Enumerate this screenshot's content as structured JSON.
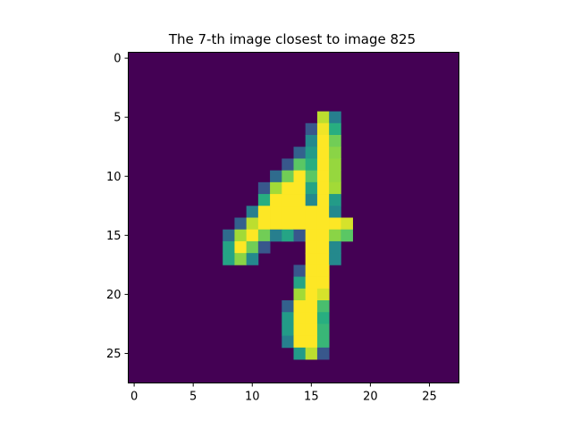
{
  "chart_data": {
    "type": "heatmap",
    "title": "The 7-th image closest to image 825",
    "xlabel": "",
    "ylabel": "",
    "rows": 28,
    "cols": 28,
    "xlim": [
      -0.5,
      27.5
    ],
    "ylim": [
      27.5,
      -0.5
    ],
    "x_ticks": [
      0,
      5,
      10,
      15,
      20,
      25
    ],
    "y_ticks": [
      0,
      5,
      10,
      15,
      20,
      25
    ],
    "colormap": "viridis",
    "value_range": [
      0,
      255
    ],
    "nonzero_pixels": [
      [
        5,
        16,
        230
      ],
      [
        5,
        17,
        110
      ],
      [
        6,
        15,
        70
      ],
      [
        6,
        16,
        250
      ],
      [
        6,
        17,
        160
      ],
      [
        7,
        15,
        120
      ],
      [
        7,
        16,
        255
      ],
      [
        7,
        17,
        200
      ],
      [
        8,
        14,
        80
      ],
      [
        8,
        15,
        140
      ],
      [
        8,
        16,
        255
      ],
      [
        8,
        17,
        210
      ],
      [
        9,
        13,
        70
      ],
      [
        9,
        14,
        190
      ],
      [
        9,
        15,
        160
      ],
      [
        9,
        16,
        255
      ],
      [
        9,
        17,
        215
      ],
      [
        10,
        12,
        90
      ],
      [
        10,
        13,
        200
      ],
      [
        10,
        14,
        255
      ],
      [
        10,
        15,
        190
      ],
      [
        10,
        16,
        255
      ],
      [
        10,
        17,
        215
      ],
      [
        11,
        11,
        70
      ],
      [
        11,
        12,
        220
      ],
      [
        11,
        13,
        255
      ],
      [
        11,
        14,
        255
      ],
      [
        11,
        15,
        150
      ],
      [
        11,
        16,
        255
      ],
      [
        11,
        17,
        220
      ],
      [
        12,
        11,
        160
      ],
      [
        12,
        12,
        255
      ],
      [
        12,
        13,
        255
      ],
      [
        12,
        14,
        255
      ],
      [
        12,
        15,
        120
      ],
      [
        12,
        16,
        255
      ],
      [
        12,
        17,
        140
      ],
      [
        13,
        10,
        110
      ],
      [
        13,
        11,
        255
      ],
      [
        13,
        12,
        255
      ],
      [
        13,
        13,
        255
      ],
      [
        13,
        14,
        255
      ],
      [
        13,
        15,
        255
      ],
      [
        13,
        16,
        255
      ],
      [
        13,
        17,
        120
      ],
      [
        14,
        9,
        80
      ],
      [
        14,
        10,
        230
      ],
      [
        14,
        11,
        255
      ],
      [
        14,
        12,
        255
      ],
      [
        14,
        13,
        255
      ],
      [
        14,
        14,
        255
      ],
      [
        14,
        15,
        255
      ],
      [
        14,
        16,
        255
      ],
      [
        14,
        17,
        255
      ],
      [
        14,
        18,
        240
      ],
      [
        15,
        8,
        90
      ],
      [
        15,
        9,
        220
      ],
      [
        15,
        10,
        255
      ],
      [
        15,
        11,
        200
      ],
      [
        15,
        12,
        110
      ],
      [
        15,
        13,
        150
      ],
      [
        15,
        14,
        70
      ],
      [
        15,
        15,
        255
      ],
      [
        15,
        16,
        255
      ],
      [
        15,
        17,
        210
      ],
      [
        15,
        18,
        190
      ],
      [
        16,
        8,
        150
      ],
      [
        16,
        9,
        255
      ],
      [
        16,
        10,
        200
      ],
      [
        16,
        11,
        70
      ],
      [
        16,
        15,
        255
      ],
      [
        16,
        16,
        255
      ],
      [
        16,
        17,
        120
      ],
      [
        17,
        8,
        150
      ],
      [
        17,
        9,
        210
      ],
      [
        17,
        10,
        120
      ],
      [
        17,
        15,
        255
      ],
      [
        17,
        16,
        255
      ],
      [
        17,
        17,
        120
      ],
      [
        18,
        14,
        70
      ],
      [
        18,
        15,
        255
      ],
      [
        18,
        16,
        255
      ],
      [
        19,
        14,
        150
      ],
      [
        19,
        15,
        255
      ],
      [
        19,
        16,
        255
      ],
      [
        20,
        14,
        220
      ],
      [
        20,
        15,
        255
      ],
      [
        20,
        16,
        240
      ],
      [
        21,
        13,
        80
      ],
      [
        21,
        14,
        255
      ],
      [
        21,
        15,
        255
      ],
      [
        21,
        16,
        180
      ],
      [
        22,
        13,
        140
      ],
      [
        22,
        14,
        255
      ],
      [
        22,
        15,
        255
      ],
      [
        22,
        16,
        160
      ],
      [
        23,
        13,
        140
      ],
      [
        23,
        14,
        255
      ],
      [
        23,
        15,
        255
      ],
      [
        23,
        16,
        170
      ],
      [
        24,
        13,
        110
      ],
      [
        24,
        14,
        255
      ],
      [
        24,
        15,
        255
      ],
      [
        24,
        16,
        170
      ],
      [
        25,
        14,
        140
      ],
      [
        25,
        15,
        230
      ],
      [
        25,
        16,
        70
      ]
    ]
  },
  "colors": {
    "background": "#440154",
    "axis": "#000000",
    "figure": "#ffffff"
  }
}
